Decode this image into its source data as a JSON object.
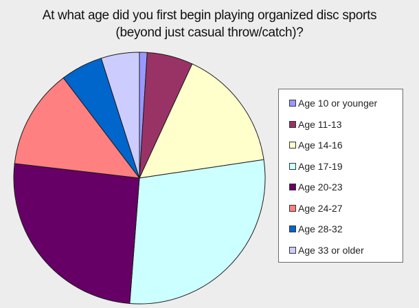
{
  "chart_data": {
    "type": "pie",
    "title_lines": [
      "At what age did you first begin playing organized disc sports",
      "(beyond just casual throw/catch)?"
    ],
    "legend_position": "right",
    "categories": [
      "Age 10 or younger",
      "Age 11-13",
      "Age 14-16",
      "Age 17-19",
      "Age 20-23",
      "Age 24-27",
      "Age 28-32",
      "Age 33 or older"
    ],
    "values": [
      1,
      6,
      16,
      29,
      26,
      13,
      5.5,
      5
    ],
    "colors": [
      "#9999ff",
      "#993366",
      "#ffffcc",
      "#ccffff",
      "#660066",
      "#ff8080",
      "#0066cc",
      "#ccccff"
    ]
  }
}
